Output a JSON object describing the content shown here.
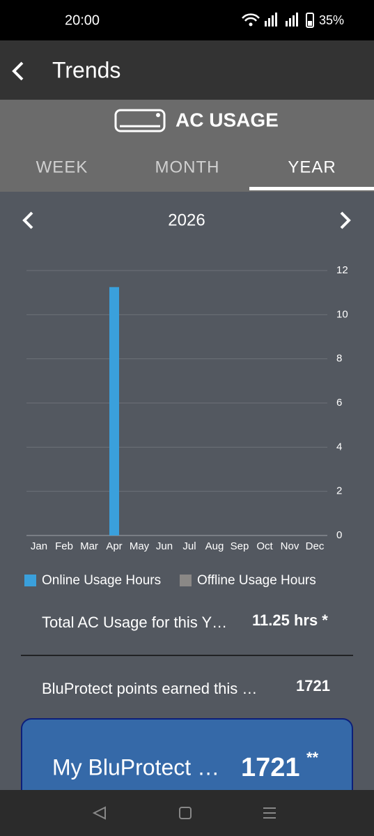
{
  "status_bar": {
    "time": "20:00",
    "battery": "35%"
  },
  "app_bar": {
    "title": "Trends"
  },
  "header": {
    "title": "AC USAGE",
    "tabs": [
      "WEEK",
      "MONTH",
      "YEAR"
    ]
  },
  "period": "2026",
  "chart_data": {
    "type": "bar",
    "categories": [
      "Jan",
      "Feb",
      "Mar",
      "Apr",
      "May",
      "Jun",
      "Jul",
      "Aug",
      "Sep",
      "Oct",
      "Nov",
      "Dec"
    ],
    "series": [
      {
        "name": "Online Usage Hours",
        "color": "#3aa0dc",
        "values": [
          0,
          0,
          0,
          11.25,
          0,
          0,
          0,
          0,
          0,
          0,
          0,
          0
        ]
      },
      {
        "name": "Offline Usage Hours",
        "color": "#8a8886",
        "values": [
          0,
          0,
          0,
          0,
          0,
          0,
          0,
          0,
          0,
          0,
          0,
          0
        ]
      }
    ],
    "ylim": [
      0,
      12
    ],
    "yticks": [
      0,
      2,
      4,
      6,
      8,
      10,
      12
    ],
    "grid": true,
    "stacked": true
  },
  "summary": {
    "total_label": "Total AC Usage for this Y…",
    "total_value": "11.25 hrs *",
    "points_label": "BluProtect points earned this …",
    "points_value": "1721"
  },
  "card": {
    "label": "My BluProtect …",
    "value": "1721",
    "mark": "**"
  }
}
